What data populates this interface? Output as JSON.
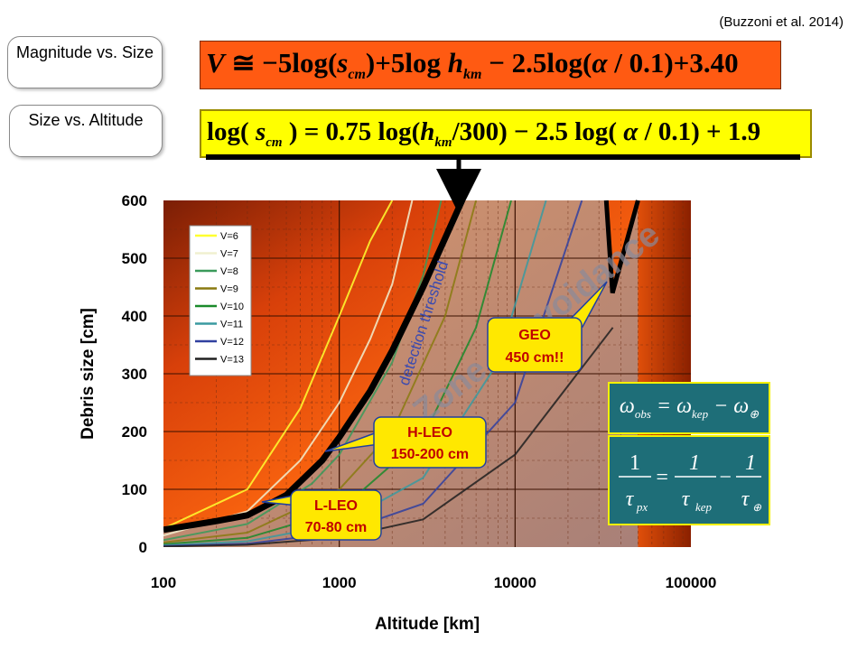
{
  "citation": "(Buzzoni et al. 2014)",
  "callouts": {
    "mag_size": "Magnitude vs. Size",
    "size_alt": "Size vs. Altitude"
  },
  "formulas": {
    "magnitude": "V ≅ −5log(s_cm) + 5log h_km − 2.5log(α / 0.1) + 3.40",
    "size": "log(s_cm) = 0.75 log(h_km/300) − 2.5 log(α / 0.1) + 1.9"
  },
  "equations": {
    "omega": "ω_obs = ω_kep − ω_⊕",
    "tau": "1/τ_px = 1/τ_kep − 1/τ_⊕"
  },
  "colors": {
    "formula1_bg": "#ff5a12",
    "formula2_bg": "#ffff00",
    "eq_bg": "#1e6e78",
    "label_bg": "#ffe800"
  },
  "chart_data": {
    "type": "line",
    "xlabel": "Altitude [km]",
    "ylabel": "Debris size [cm]",
    "xscale": "log",
    "xlim": [
      100,
      100000
    ],
    "ylim": [
      0,
      600
    ],
    "x_ticks": [
      "100",
      "1000",
      "10000",
      "100000"
    ],
    "y_ticks": [
      "0",
      "100",
      "200",
      "300",
      "400",
      "500",
      "600"
    ],
    "grid": true,
    "legend_position": "top-left",
    "series": [
      {
        "name": "V=6",
        "color": "#ffff30",
        "points": [
          [
            100,
            32
          ],
          [
            300,
            100
          ],
          [
            600,
            240
          ],
          [
            1000,
            400
          ],
          [
            1500,
            530
          ],
          [
            2000,
            600
          ]
        ]
      },
      {
        "name": "V=7",
        "color": "#f0f0d0",
        "points": [
          [
            100,
            20
          ],
          [
            300,
            62
          ],
          [
            600,
            150
          ],
          [
            1000,
            250
          ],
          [
            1500,
            360
          ],
          [
            2000,
            455
          ],
          [
            2600,
            600
          ]
        ]
      },
      {
        "name": "V=8",
        "color": "#3a9a5a",
        "points": [
          [
            100,
            12
          ],
          [
            300,
            40
          ],
          [
            700,
            110
          ],
          [
            1000,
            160
          ],
          [
            2000,
            320
          ],
          [
            3000,
            470
          ],
          [
            3800,
            600
          ]
        ]
      },
      {
        "name": "V=9",
        "color": "#8a7a10",
        "points": [
          [
            100,
            8
          ],
          [
            300,
            25
          ],
          [
            1000,
            100
          ],
          [
            2000,
            200
          ],
          [
            4000,
            400
          ],
          [
            6000,
            600
          ]
        ]
      },
      {
        "name": "V=10",
        "color": "#1a8a2a",
        "points": [
          [
            100,
            5
          ],
          [
            300,
            16
          ],
          [
            1000,
            63
          ],
          [
            3000,
            190
          ],
          [
            6000,
            380
          ],
          [
            9500,
            600
          ]
        ]
      },
      {
        "name": "V=11",
        "color": "#3a9aa0",
        "points": [
          [
            100,
            3
          ],
          [
            300,
            10
          ],
          [
            1000,
            40
          ],
          [
            3000,
            120
          ],
          [
            8000,
            320
          ],
          [
            15000,
            600
          ]
        ]
      },
      {
        "name": "V=12",
        "color": "#3040a0",
        "points": [
          [
            100,
            2
          ],
          [
            300,
            6
          ],
          [
            1000,
            25
          ],
          [
            3000,
            75
          ],
          [
            10000,
            250
          ],
          [
            24000,
            600
          ]
        ]
      },
      {
        "name": "V=13",
        "color": "#202020",
        "points": [
          [
            100,
            1
          ],
          [
            300,
            4
          ],
          [
            1000,
            16
          ],
          [
            3000,
            48
          ],
          [
            10000,
            160
          ],
          [
            36000,
            380
          ]
        ]
      }
    ],
    "threshold": {
      "label": "detection threshold",
      "points": [
        [
          100,
          30
        ],
        [
          200,
          45
        ],
        [
          300,
          55
        ],
        [
          500,
          90
        ],
        [
          800,
          150
        ],
        [
          1000,
          190
        ],
        [
          1500,
          270
        ],
        [
          2000,
          340
        ],
        [
          3000,
          450
        ],
        [
          5000,
          600
        ]
      ],
      "geo_points": [
        [
          33000,
          600
        ],
        [
          35800,
          440
        ],
        [
          50000,
          600
        ]
      ]
    },
    "zone_label": "Zone of avoidance",
    "annotations": [
      {
        "label": "L-LEO",
        "value": "70-80 cm"
      },
      {
        "label": "H-LEO",
        "value": "150-200 cm"
      },
      {
        "label": "GEO",
        "value": "450 cm!!"
      }
    ]
  }
}
